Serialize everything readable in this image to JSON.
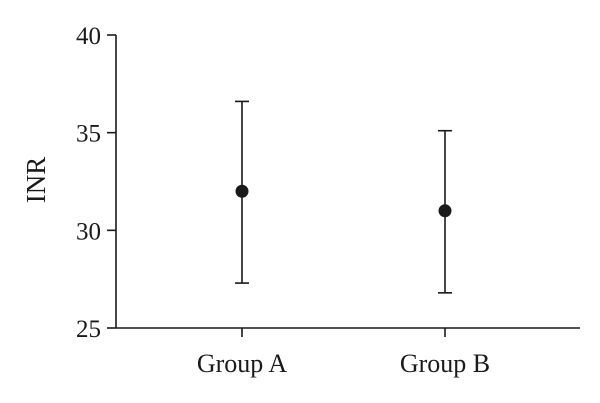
{
  "chart_data": {
    "type": "scatter",
    "title": "",
    "xlabel": "",
    "ylabel": "INR",
    "ylim": [
      25,
      40
    ],
    "yticks": [
      25,
      30,
      35,
      40
    ],
    "categories": [
      "Group A",
      "Group B"
    ],
    "series": [
      {
        "values": [
          32.0,
          31.0
        ],
        "error_low": [
          27.3,
          26.8
        ],
        "error_high": [
          36.6,
          35.1
        ]
      }
    ],
    "grid": false,
    "legend": "none",
    "colors": {
      "marks": "#1a1a1a"
    }
  }
}
